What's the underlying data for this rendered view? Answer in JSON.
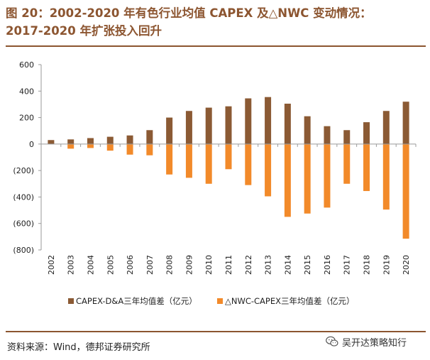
{
  "title": {
    "line1": "图 20：2002-2020 年有色行业均值 CAPEX 及△NWC 变动情况：",
    "line2": "2017-2020 年扩张投入回升"
  },
  "source": "资料来源：Wind，德邦证券研究所",
  "watermark": {
    "text": "吴开达策略知行",
    "icon": "wechat-icon"
  },
  "colors": {
    "title": "#8c5530",
    "capex": "#8b5a34",
    "nwc": "#f28a2a",
    "axis": "#9a9a9a"
  },
  "chart_data": {
    "type": "bar",
    "categories": [
      "2002",
      "2003",
      "2004",
      "2005",
      "2006",
      "2007",
      "2008",
      "2009",
      "2010",
      "2011",
      "2012",
      "2013",
      "2014",
      "2015",
      "2016",
      "2017",
      "2018",
      "2019",
      "2020"
    ],
    "series": [
      {
        "name": "CAPEX-D&A三年均值差（亿元）",
        "color": "#8b5a34",
        "values": [
          30,
          35,
          45,
          55,
          65,
          105,
          200,
          250,
          275,
          285,
          345,
          355,
          305,
          210,
          135,
          105,
          165,
          250,
          320
        ]
      },
      {
        "name": "△NWC-CAPEX三年均值差（亿元）",
        "color": "#f28a2a",
        "values": [
          0,
          -35,
          -30,
          -50,
          -80,
          -85,
          -230,
          -255,
          -300,
          -190,
          -310,
          -395,
          -550,
          -525,
          -480,
          -300,
          -355,
          -495,
          -715
        ]
      }
    ],
    "ylim": [
      -800,
      600
    ],
    "yticks": [
      600,
      400,
      200,
      0,
      -200,
      -400,
      -600,
      -800
    ],
    "ytick_labels": [
      "600",
      "400",
      "200",
      "0",
      "(200)",
      "(400)",
      "(600)",
      "(800)"
    ],
    "legend_position": "bottom-center",
    "xlabel": "",
    "ylabel": ""
  }
}
